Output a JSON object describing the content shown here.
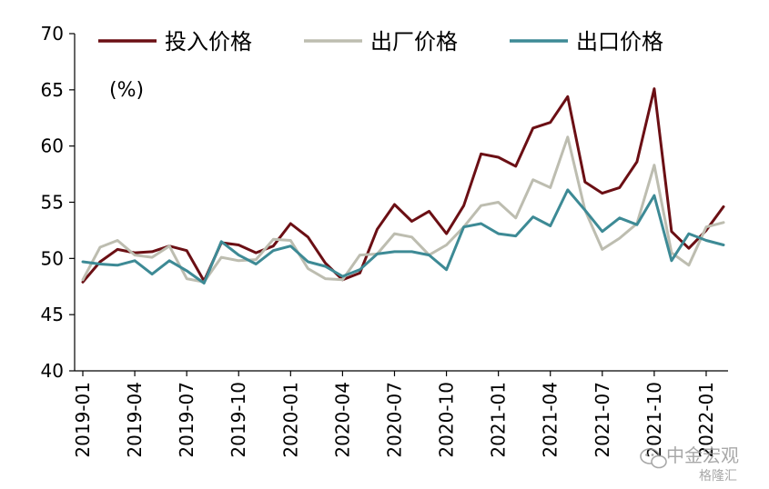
{
  "chart_data": {
    "type": "line",
    "unit_label": "(%)",
    "ylim": [
      40,
      70
    ],
    "yticks": [
      40,
      45,
      50,
      55,
      60,
      65,
      70
    ],
    "x": [
      "2019-01",
      "2019-02",
      "2019-03",
      "2019-04",
      "2019-05",
      "2019-06",
      "2019-07",
      "2019-08",
      "2019-09",
      "2019-10",
      "2019-11",
      "2019-12",
      "2020-01",
      "2020-02",
      "2020-03",
      "2020-04",
      "2020-05",
      "2020-06",
      "2020-07",
      "2020-08",
      "2020-09",
      "2020-10",
      "2020-11",
      "2020-12",
      "2021-01",
      "2021-02",
      "2021-03",
      "2021-04",
      "2021-05",
      "2021-06",
      "2021-07",
      "2021-08",
      "2021-09",
      "2021-10",
      "2021-11",
      "2021-12",
      "2022-01",
      "2022-02"
    ],
    "xtick_labels": [
      "2019-01",
      "2019-04",
      "2019-07",
      "2019-10",
      "2020-01",
      "2020-04",
      "2020-07",
      "2020-10",
      "2021-01",
      "2021-04",
      "2021-07",
      "2021-10",
      "2022-01"
    ],
    "grid": false,
    "legend_position": "top",
    "series": [
      {
        "name": "投入价格",
        "color": "#6b0f14",
        "values": [
          47.9,
          49.7,
          50.8,
          50.5,
          50.6,
          51.1,
          50.7,
          48.0,
          51.4,
          51.2,
          50.5,
          51.1,
          53.1,
          51.9,
          49.6,
          48.1,
          48.7,
          52.6,
          54.8,
          53.3,
          54.2,
          52.2,
          54.7,
          59.3,
          59.0,
          58.2,
          61.6,
          62.1,
          64.4,
          56.8,
          55.8,
          56.3,
          58.6,
          65.1,
          52.4,
          50.9,
          52.5,
          54.6
        ]
      },
      {
        "name": "出厂价格",
        "color": "#bdbdb0",
        "values": [
          48.1,
          51.0,
          51.6,
          50.3,
          50.1,
          51.1,
          48.2,
          47.9,
          50.1,
          49.8,
          49.9,
          51.7,
          51.6,
          49.1,
          48.2,
          48.1,
          50.3,
          50.4,
          52.2,
          51.9,
          50.3,
          51.2,
          52.8,
          54.7,
          55.0,
          53.6,
          57.0,
          56.3,
          60.8,
          54.3,
          50.8,
          51.8,
          53.1,
          58.3,
          50.5,
          49.4,
          52.8,
          53.2
        ]
      },
      {
        "name": "出口价格",
        "color": "#3d8a95",
        "values": [
          49.7,
          49.5,
          49.4,
          49.8,
          48.6,
          49.8,
          48.9,
          47.8,
          51.5,
          50.3,
          49.5,
          50.7,
          51.1,
          49.7,
          49.3,
          48.4,
          49.0,
          50.4,
          50.6,
          50.6,
          50.3,
          49.0,
          52.8,
          53.1,
          52.2,
          52.0,
          53.7,
          52.9,
          56.1,
          54.3,
          52.4,
          53.6,
          53.0,
          55.6,
          49.8,
          52.2,
          51.6,
          51.2
        ]
      }
    ]
  },
  "watermark": {
    "text": "中金宏观",
    "sub_text": "格隆汇",
    "icon": "wechat-icon"
  }
}
